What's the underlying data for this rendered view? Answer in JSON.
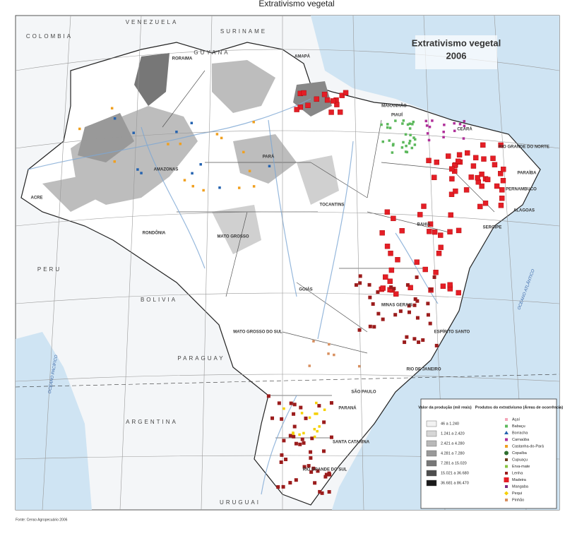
{
  "header": {
    "title": "Extrativismo vegetal"
  },
  "map": {
    "title": "Extrativismo vegetal",
    "year": "2006",
    "countries": [
      "COLOMBIA",
      "VENEZUELA",
      "SURINAME",
      "GUYANA",
      "PERU",
      "BOLIVIA",
      "PARAGUAY",
      "ARGENTINA",
      "URUGUAI"
    ],
    "oceans": [
      "OCEANO PACÍFICO",
      "OCEANO ATLÂNTICO"
    ],
    "states": [
      "RORAIMA",
      "AMAPÁ",
      "AMAZONAS",
      "PARÁ",
      "MARANHÃO",
      "CEARÁ",
      "PIAUÍ",
      "RIO GRANDE DO NORTE",
      "PARAÍBA",
      "PERNAMBUCO",
      "ALAGOAS",
      "SERGIPE",
      "BAHIA",
      "TOCANTINS",
      "RONDÔNIA",
      "ACRE",
      "MATO GROSSO",
      "GOIÁS",
      "MINAS GERAIS",
      "ESPÍRITO SANTO",
      "RIO DE JANEIRO",
      "SÃO PAULO",
      "MATO GROSSO DO SUL",
      "PARANÁ",
      "SANTA CATARINA",
      "RIO GRANDE DO SUL"
    ]
  },
  "legend": {
    "production": {
      "title": "Valor da produção (mil reais)",
      "classes": [
        {
          "label": "46 a 1.240",
          "color": "#f2f2f2"
        },
        {
          "label": "1.241 a 2.420",
          "color": "#d6d6d6"
        },
        {
          "label": "2.421 a 4.280",
          "color": "#b8b8b8"
        },
        {
          "label": "4.281 a 7.280",
          "color": "#999999"
        },
        {
          "label": "7.281 a 15.020",
          "color": "#777777"
        },
        {
          "label": "15.021 a 36.680",
          "color": "#4d4d4d"
        },
        {
          "label": "36.681 a 86.470",
          "color": "#1a1a1a"
        }
      ]
    },
    "products": {
      "title": "Produtos do extrativismo (Áreas de ocorrência)",
      "items": [
        {
          "label": "Açaí",
          "color": "#f4a6b8",
          "shape": "square"
        },
        {
          "label": "Babaçu",
          "color": "#5cb85c",
          "shape": "square"
        },
        {
          "label": "Borracha",
          "color": "#2563b0",
          "shape": "triangle"
        },
        {
          "label": "Carnaúba",
          "color": "#b0309a",
          "shape": "square"
        },
        {
          "label": "Castanha-do-Pará",
          "color": "#f0a020",
          "shape": "square"
        },
        {
          "label": "Copaíba",
          "color": "#2f6f2f",
          "shape": "circle"
        },
        {
          "label": "Cupuaçu",
          "color": "#6b3b1a",
          "shape": "square"
        },
        {
          "label": "Erva-mate",
          "color": "#86c440",
          "shape": "square"
        },
        {
          "label": "Lenha",
          "color": "#9b1c1c",
          "shape": "square"
        },
        {
          "label": "Madeira",
          "color": "#e41e26",
          "shape": "bigsquare"
        },
        {
          "label": "Mangaba",
          "color": "#7a2b80",
          "shape": "square"
        },
        {
          "label": "Pequi",
          "color": "#f5d000",
          "shape": "diamond"
        },
        {
          "label": "Pinhão",
          "color": "#d89060",
          "shape": "square"
        }
      ]
    }
  },
  "source": "Fonte: Censo Agropecuário 2006"
}
